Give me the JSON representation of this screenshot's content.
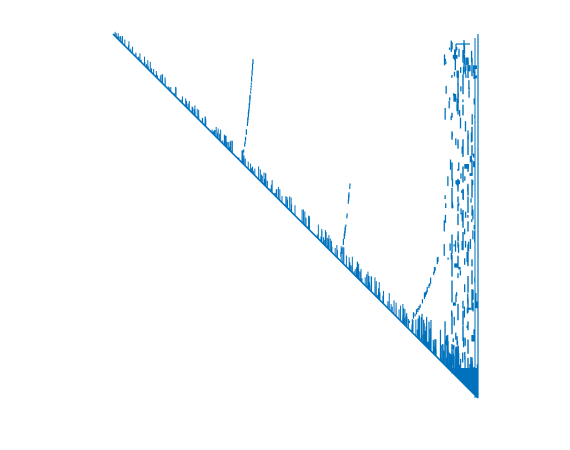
{
  "figure": {
    "kind": "sparsity-pattern",
    "structure": "upper-triangular",
    "color": "#0072BD",
    "background": "#FFFFFF",
    "axes_visible": false
  }
}
